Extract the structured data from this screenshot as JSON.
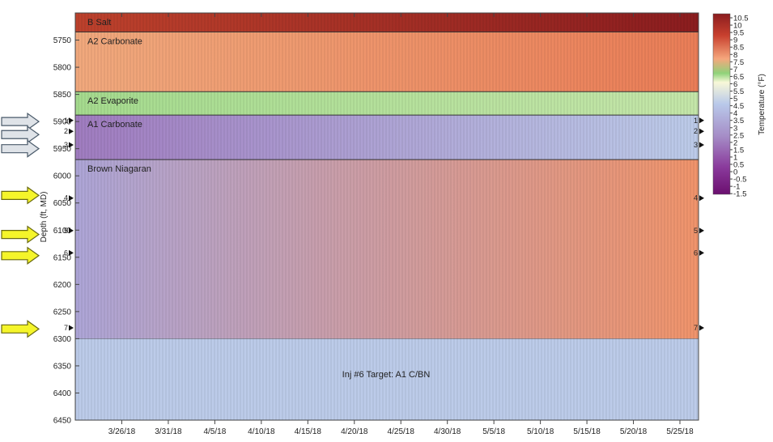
{
  "chart_data": {
    "type": "heatmap",
    "ylabel": "Depth (ft, MD)",
    "y_ticks": [
      5750,
      5800,
      5850,
      5900,
      5950,
      6000,
      6050,
      6100,
      6150,
      6200,
      6250,
      6300,
      6350,
      6400,
      6450
    ],
    "ylim": [
      5700,
      6450
    ],
    "y_reversed": true,
    "x_ticks": [
      "3/26/18",
      "3/31/18",
      "4/5/18",
      "4/10/18",
      "4/15/18",
      "4/20/18",
      "4/25/18",
      "4/30/18",
      "5/5/18",
      "5/10/18",
      "5/15/18",
      "5/20/18",
      "5/25/18"
    ],
    "xlim": [
      "2018-03-21",
      "2018-05-27"
    ],
    "colorbar": {
      "label": "Temperature (°F)",
      "ticks": [
        "10.5",
        "10",
        "9.5",
        "9",
        "8.5",
        "8",
        "7.5",
        "7",
        "6.5",
        "6",
        "5.5",
        "5",
        "4.5",
        "4",
        "3.5",
        "3",
        "2.5",
        "2",
        "1.5",
        "1",
        "0.5",
        "0",
        "-0.5",
        "-1",
        "-1.5"
      ],
      "range": [
        -1.5,
        10.5
      ],
      "stops": [
        "#6b0f6f",
        "#8a3a9c",
        "#b9c9ea",
        "#f8f8d8",
        "#8fd37a",
        "#f5a77d",
        "#e05a36",
        "#8b1d1f"
      ]
    },
    "formations": [
      {
        "name": "B Salt",
        "top": 5700,
        "bottom": 5735,
        "temp_start": 9.5,
        "temp_end": 10.5
      },
      {
        "name": "A2 Carbonate",
        "top": 5735,
        "bottom": 5845,
        "temp_start": 7,
        "temp_end": 8
      },
      {
        "name": "A2 Evaporite",
        "top": 5845,
        "bottom": 5888,
        "temp_start": 5,
        "temp_end": 4.5
      },
      {
        "name": "A1 Carbonate",
        "top": 5888,
        "bottom": 5970,
        "temp_start": 1,
        "temp_end": 2
      },
      {
        "name": "Brown Niagaran",
        "top": 5970,
        "bottom": 6300,
        "temp_start": 1.5,
        "temp_end": 7.5
      }
    ],
    "annotation": "Inj #6 Target: A1 C/BN",
    "markers": [
      {
        "label": "1",
        "depth": 5898
      },
      {
        "label": "2",
        "depth": 5918
      },
      {
        "label": "3",
        "depth": 5943
      },
      {
        "label": "4",
        "depth": 6041
      },
      {
        "label": "5",
        "depth": 6101
      },
      {
        "label": "6",
        "depth": 6142
      },
      {
        "label": "7",
        "depth": 6280
      }
    ],
    "arrows": [
      {
        "color": "gray",
        "depth": 5900
      },
      {
        "color": "gray",
        "depth": 5924
      },
      {
        "color": "gray",
        "depth": 5950
      },
      {
        "color": "yellow",
        "depth": 6036
      },
      {
        "color": "yellow",
        "depth": 6108
      },
      {
        "color": "yellow",
        "depth": 6147
      },
      {
        "color": "yellow",
        "depth": 6282
      }
    ],
    "colors": {
      "gray_arrow_fill": "#dfe3e8",
      "gray_arrow_stroke": "#4a5a6a",
      "yellow_arrow_fill": "#f5f52a",
      "yellow_arrow_stroke": "#6a6a10"
    }
  }
}
